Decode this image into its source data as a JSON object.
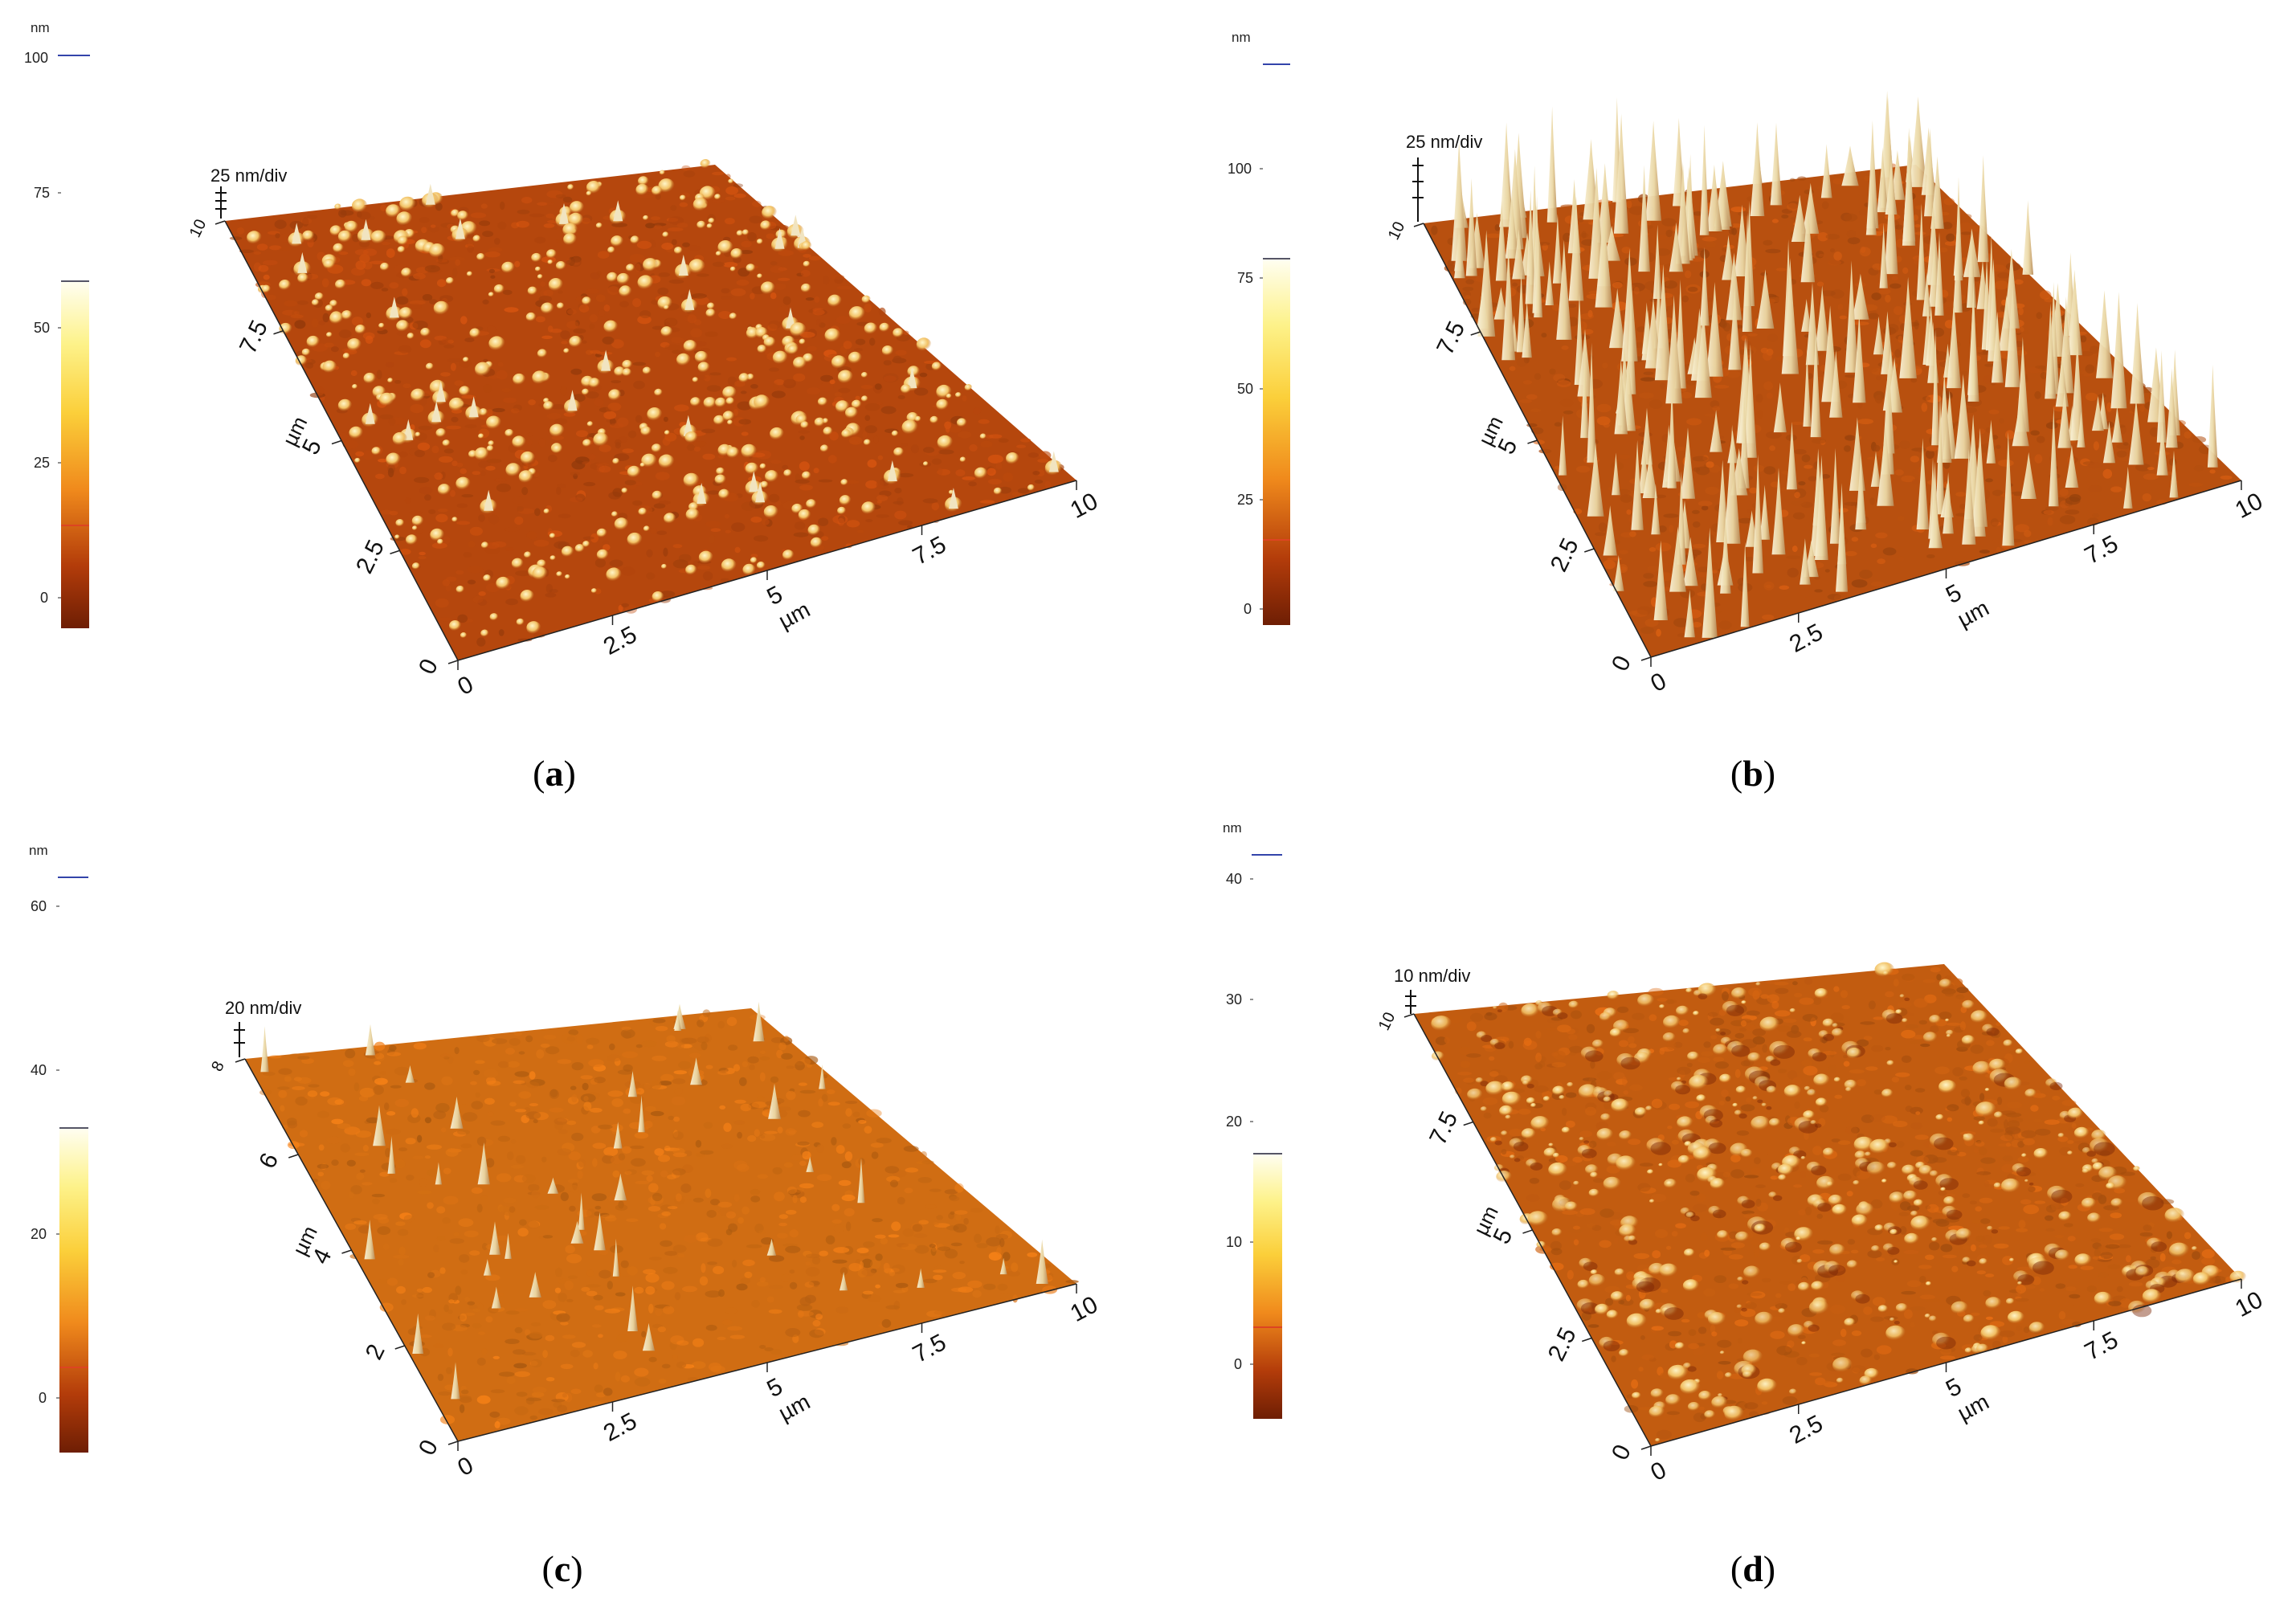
{
  "panels": [
    {
      "id": "a",
      "caption_letter": "a",
      "scale_label": "25 nm/div",
      "colorbar": {
        "unit": "nm",
        "ticks": [
          "100",
          "75",
          "50",
          "25",
          "0"
        ]
      },
      "axes": {
        "x_unit": "µm",
        "y_unit": "µm",
        "x_ticks": [
          "0",
          "2.5",
          "5",
          "7.5",
          "10"
        ],
        "y_ticks": [
          "0",
          "2.5",
          "5",
          "7.5",
          "10"
        ]
      },
      "surface": {
        "base_color": "#b5470d",
        "peak_color": "#f6e7a8",
        "peak_density": "medium",
        "peak_style": "rounded"
      }
    },
    {
      "id": "b",
      "caption_letter": "b",
      "scale_label": "25 nm/div",
      "colorbar": {
        "unit": "nm",
        "ticks": [
          "100",
          "75",
          "50",
          "25",
          "0"
        ]
      },
      "axes": {
        "x_unit": "µm",
        "y_unit": "µm",
        "x_ticks": [
          "0",
          "2.5",
          "5",
          "7.5",
          "10"
        ],
        "y_ticks": [
          "0",
          "2.5",
          "5",
          "7.5",
          "10"
        ]
      },
      "surface": {
        "base_color": "#b8500f",
        "peak_color": "#f7eec4",
        "peak_density": "high",
        "peak_style": "spikes"
      }
    },
    {
      "id": "c",
      "caption_letter": "c",
      "scale_label": "20 nm/div",
      "colorbar": {
        "unit": "nm",
        "ticks": [
          "60",
          "40",
          "20",
          "0"
        ]
      },
      "axes": {
        "x_unit": "µm",
        "y_unit": "µm",
        "x_ticks": [
          "0",
          "2.5",
          "5",
          "7.5",
          "10"
        ],
        "y_ticks": [
          "0",
          "2",
          "4",
          "6",
          "8"
        ]
      },
      "surface": {
        "base_color": "#d06d13",
        "peak_color": "#f2f0dc",
        "peak_density": "low",
        "peak_style": "spikes"
      }
    },
    {
      "id": "d",
      "caption_letter": "d",
      "scale_label": "10 nm/div",
      "colorbar": {
        "unit": "nm",
        "ticks": [
          "40",
          "30",
          "20",
          "10",
          "0"
        ]
      },
      "axes": {
        "x_unit": "µm",
        "y_unit": "µm",
        "x_ticks": [
          "0",
          "2.5",
          "5",
          "7.5",
          "10"
        ],
        "y_ticks": [
          "0",
          "2.5",
          "5",
          "7.5",
          "10"
        ]
      },
      "surface": {
        "base_color": "#c25c10",
        "peak_color": "#fff0b0",
        "peak_density": "medium",
        "peak_style": "grains"
      }
    }
  ]
}
